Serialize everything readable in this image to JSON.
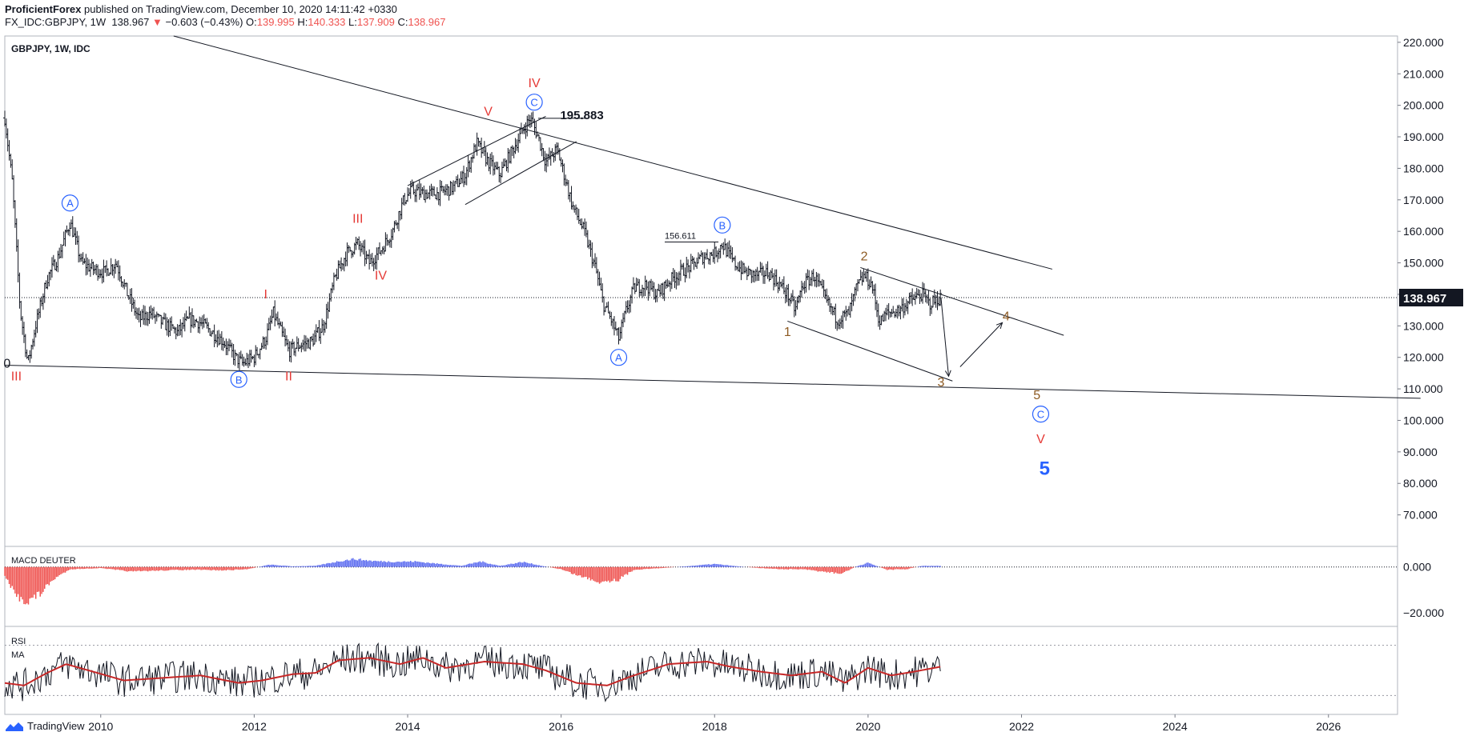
{
  "header": {
    "author": "ProficientForex",
    "published": "published on TradingView.com, December 10, 2020 14:11:42 +0330",
    "symbol_line": "FX_IDC:GBPJPY, 1W",
    "last": "138.967",
    "change": "−0.603 (−0.43%)",
    "o_label": "O:",
    "o": "139.995",
    "h_label": "H:",
    "h": "140.333",
    "l_label": "L:",
    "l": "137.909",
    "c_label": "C:",
    "c": "138.967"
  },
  "legend": {
    "main": "GBPJPY, 1W, IDC",
    "macd": "MACD DEUTER",
    "rsi": "RSI",
    "ma": "MA"
  },
  "footer": {
    "brand": "TradingView",
    "logo_icon": "tradingview-logo-icon"
  },
  "colors": {
    "bars": "#131722",
    "wave_red": "#e53935",
    "wave_blue": "#2962ff",
    "wave_brown": "#8d5a22",
    "macd_pos": "#5b6bf0",
    "macd_neg": "#ef5350",
    "rsi_line": "#131722",
    "ma_line": "#c62828",
    "grid": "#e0e3eb"
  },
  "chart_data": [
    {
      "type": "candlestick",
      "panel": "price",
      "x_range": [
        "2008-09",
        "2026-12"
      ],
      "x_ticks": [
        "2010",
        "2012",
        "2014",
        "2016",
        "2018",
        "2020",
        "2022",
        "2024",
        "2026"
      ],
      "ylim": [
        60,
        222
      ],
      "y_ticks": [
        "220.000",
        "210.000",
        "200.000",
        "190.000",
        "180.000",
        "170.000",
        "160.000",
        "150.000",
        "140.000",
        "130.000",
        "120.000",
        "110.000",
        "100.000",
        "90.000",
        "80.000",
        "70.000"
      ],
      "last_price": "138.967",
      "path_points": [
        [
          2008.75,
          196
        ],
        [
          2008.85,
          175
        ],
        [
          2008.95,
          135
        ],
        [
          2009.05,
          118
        ],
        [
          2009.15,
          130
        ],
        [
          2009.3,
          145
        ],
        [
          2009.45,
          152
        ],
        [
          2009.6,
          163
        ],
        [
          2009.75,
          150
        ],
        [
          2009.9,
          148
        ],
        [
          2010.05,
          147
        ],
        [
          2010.2,
          150
        ],
        [
          2010.35,
          140
        ],
        [
          2010.5,
          132
        ],
        [
          2010.65,
          134
        ],
        [
          2010.8,
          131
        ],
        [
          2011.0,
          128
        ],
        [
          2011.15,
          132
        ],
        [
          2011.3,
          131
        ],
        [
          2011.45,
          128
        ],
        [
          2011.6,
          125
        ],
        [
          2011.75,
          120
        ],
        [
          2011.85,
          118
        ],
        [
          2012.0,
          120
        ],
        [
          2012.15,
          126
        ],
        [
          2012.25,
          134
        ],
        [
          2012.35,
          128
        ],
        [
          2012.45,
          122
        ],
        [
          2012.6,
          124
        ],
        [
          2012.75,
          125
        ],
        [
          2012.9,
          130
        ],
        [
          2013.05,
          145
        ],
        [
          2013.2,
          153
        ],
        [
          2013.35,
          156
        ],
        [
          2013.5,
          150
        ],
        [
          2013.65,
          154
        ],
        [
          2013.8,
          160
        ],
        [
          2013.95,
          170
        ],
        [
          2014.05,
          173
        ],
        [
          2014.2,
          172
        ],
        [
          2014.4,
          172
        ],
        [
          2014.6,
          174
        ],
        [
          2014.75,
          178
        ],
        [
          2014.9,
          188
        ],
        [
          2015.05,
          182
        ],
        [
          2015.2,
          178
        ],
        [
          2015.35,
          185
        ],
        [
          2015.5,
          192
        ],
        [
          2015.6,
          196
        ],
        [
          2015.7,
          190
        ],
        [
          2015.8,
          182
        ],
        [
          2015.95,
          186
        ],
        [
          2016.05,
          177
        ],
        [
          2016.15,
          168
        ],
        [
          2016.3,
          160
        ],
        [
          2016.45,
          148
        ],
        [
          2016.55,
          137
        ],
        [
          2016.65,
          132
        ],
        [
          2016.75,
          126
        ],
        [
          2016.85,
          135
        ],
        [
          2016.95,
          142
        ],
        [
          2017.1,
          143
        ],
        [
          2017.25,
          140
        ],
        [
          2017.4,
          144
        ],
        [
          2017.55,
          147
        ],
        [
          2017.7,
          149
        ],
        [
          2017.85,
          152
        ],
        [
          2018.0,
          153
        ],
        [
          2018.1,
          156
        ],
        [
          2018.25,
          150
        ],
        [
          2018.4,
          147
        ],
        [
          2018.55,
          146
        ],
        [
          2018.7,
          147
        ],
        [
          2018.85,
          143
        ],
        [
          2018.95,
          140
        ],
        [
          2019.05,
          135
        ],
        [
          2019.15,
          143
        ],
        [
          2019.3,
          146
        ],
        [
          2019.45,
          138
        ],
        [
          2019.6,
          132
        ],
        [
          2019.75,
          134
        ],
        [
          2019.85,
          142
        ],
        [
          2019.95,
          146
        ],
        [
          2020.05,
          143
        ],
        [
          2020.15,
          131
        ],
        [
          2020.25,
          134
        ],
        [
          2020.4,
          135
        ],
        [
          2020.55,
          138
        ],
        [
          2020.7,
          140
        ],
        [
          2020.8,
          137
        ],
        [
          2020.95,
          139
        ]
      ],
      "wave_labels": [
        {
          "text": "III",
          "x": 2008.9,
          "y": 114,
          "style": "red"
        },
        {
          "text": "0",
          "x": 2008.78,
          "y": 118,
          "style": "plain"
        },
        {
          "text": "A",
          "x": 2009.6,
          "y": 169,
          "style": "circle-blue"
        },
        {
          "text": "B",
          "x": 2011.8,
          "y": 113,
          "style": "circle-blue"
        },
        {
          "text": "II",
          "x": 2012.45,
          "y": 114,
          "style": "red"
        },
        {
          "text": "I",
          "x": 2012.15,
          "y": 140,
          "style": "red"
        },
        {
          "text": "III",
          "x": 2013.35,
          "y": 164,
          "style": "red"
        },
        {
          "text": "IV",
          "x": 2013.65,
          "y": 146,
          "style": "red"
        },
        {
          "text": "V",
          "x": 2015.05,
          "y": 198,
          "style": "red"
        },
        {
          "text": "IV",
          "x": 2015.65,
          "y": 207,
          "style": "red"
        },
        {
          "text": "C",
          "x": 2015.65,
          "y": 201,
          "style": "circle-blue"
        },
        {
          "text": "A",
          "x": 2016.75,
          "y": 120,
          "style": "circle-blue"
        },
        {
          "text": "B",
          "x": 2018.1,
          "y": 162,
          "style": "circle-blue"
        },
        {
          "text": "1",
          "x": 2018.95,
          "y": 128,
          "style": "brown"
        },
        {
          "text": "2",
          "x": 2019.95,
          "y": 152,
          "style": "brown"
        },
        {
          "text": "3",
          "x": 2020.95,
          "y": 112,
          "style": "brown"
        },
        {
          "text": "4",
          "x": 2021.8,
          "y": 133,
          "style": "brown"
        },
        {
          "text": "5",
          "x": 2022.2,
          "y": 108,
          "style": "brown"
        },
        {
          "text": "C",
          "x": 2022.25,
          "y": 102,
          "style": "circle-blue"
        },
        {
          "text": "V",
          "x": 2022.25,
          "y": 94,
          "style": "red"
        },
        {
          "text": "5",
          "x": 2022.3,
          "y": 84,
          "style": "blue-bold"
        }
      ],
      "price_annotations": [
        {
          "text": "195.883",
          "x": 2015.8,
          "y": 195.883
        },
        {
          "text": "156.611",
          "x": 2017.35,
          "y": 156.611
        }
      ]
    },
    {
      "type": "histogram",
      "panel": "macd",
      "name": "MACD DEUTER",
      "y_ticks": [
        "0.000",
        "−20.000"
      ],
      "ylim": [
        -26,
        9
      ],
      "anchors": [
        [
          2008.75,
          -4
        ],
        [
          2008.9,
          -13
        ],
        [
          2009.05,
          -15
        ],
        [
          2009.2,
          -12
        ],
        [
          2009.4,
          -5
        ],
        [
          2009.6,
          -1
        ],
        [
          2010.0,
          -0.5
        ],
        [
          2010.4,
          -2
        ],
        [
          2010.8,
          -1.5
        ],
        [
          2011.2,
          -1.2
        ],
        [
          2011.6,
          -1.5
        ],
        [
          2011.9,
          -1
        ],
        [
          2012.2,
          1
        ],
        [
          2012.5,
          0.3
        ],
        [
          2012.8,
          0.5
        ],
        [
          2013.1,
          2.5
        ],
        [
          2013.3,
          3.5
        ],
        [
          2013.55,
          2.6
        ],
        [
          2013.8,
          2.3
        ],
        [
          2014.1,
          2.4
        ],
        [
          2014.4,
          1.4
        ],
        [
          2014.7,
          0.5
        ],
        [
          2014.95,
          2.4
        ],
        [
          2015.2,
          0.5
        ],
        [
          2015.5,
          2.2
        ],
        [
          2015.75,
          0.5
        ],
        [
          2016.0,
          -1
        ],
        [
          2016.2,
          -3.5
        ],
        [
          2016.5,
          -6.5
        ],
        [
          2016.75,
          -5.5
        ],
        [
          2016.95,
          -1.2
        ],
        [
          2017.3,
          -0.5
        ],
        [
          2017.7,
          0.5
        ],
        [
          2018.0,
          1.3
        ],
        [
          2018.3,
          0.3
        ],
        [
          2018.6,
          -0.5
        ],
        [
          2018.9,
          -1
        ],
        [
          2019.15,
          -1
        ],
        [
          2019.4,
          -2
        ],
        [
          2019.65,
          -3
        ],
        [
          2019.85,
          0.3
        ],
        [
          2020.0,
          1.8
        ],
        [
          2020.25,
          -1.2
        ],
        [
          2020.5,
          -1
        ],
        [
          2020.7,
          0.5
        ],
        [
          2020.95,
          0.5
        ]
      ]
    },
    {
      "type": "line",
      "panel": "rsi",
      "series": [
        {
          "name": "RSI",
          "role": "rsi"
        },
        {
          "name": "MA",
          "role": "ma"
        }
      ],
      "ma_anchors": [
        [
          2008.75,
          40
        ],
        [
          2009.0,
          38
        ],
        [
          2009.3,
          48
        ],
        [
          2009.55,
          55
        ],
        [
          2009.9,
          49
        ],
        [
          2010.3,
          42
        ],
        [
          2010.8,
          44
        ],
        [
          2011.3,
          46
        ],
        [
          2011.8,
          40
        ],
        [
          2012.1,
          42
        ],
        [
          2012.5,
          47
        ],
        [
          2012.8,
          48
        ],
        [
          2013.1,
          58
        ],
        [
          2013.5,
          60
        ],
        [
          2013.9,
          55
        ],
        [
          2014.2,
          60
        ],
        [
          2014.5,
          52
        ],
        [
          2015.0,
          57
        ],
        [
          2015.5,
          55
        ],
        [
          2015.8,
          50
        ],
        [
          2016.2,
          40
        ],
        [
          2016.6,
          38
        ],
        [
          2016.9,
          45
        ],
        [
          2017.4,
          55
        ],
        [
          2017.9,
          57
        ],
        [
          2018.2,
          53
        ],
        [
          2018.6,
          49
        ],
        [
          2019.0,
          46
        ],
        [
          2019.4,
          49
        ],
        [
          2019.7,
          40
        ],
        [
          2020.0,
          52
        ],
        [
          2020.3,
          46
        ],
        [
          2020.6,
          49
        ],
        [
          2020.95,
          53
        ]
      ]
    }
  ]
}
